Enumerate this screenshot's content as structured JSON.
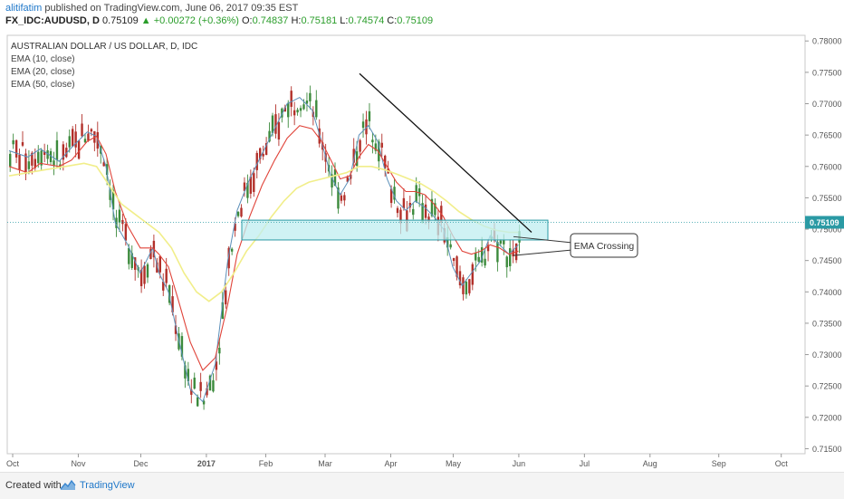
{
  "header": {
    "author": "alitifatim",
    "published_text": "published on TradingView.com, June 06, 2017 09:35 EST",
    "symbol": "FX_IDC:AUDUSD, D",
    "last": "0.75109",
    "change": "▲ +0.00272 (+0.36%)",
    "o_label": "O:",
    "o": "0.74837",
    "h_label": "H:",
    "h": "0.75181",
    "l_label": "L:",
    "l": "0.74574",
    "c_label": "C:",
    "c": "0.75109"
  },
  "legend": {
    "title": "AUSTRALIAN DOLLAR / US DOLLAR, D, IDC",
    "ema10": "EMA (10, close)",
    "ema20": "EMA (20, close)",
    "ema50": "EMA (50, close)"
  },
  "footer": {
    "created_with": "Created with",
    "brand": "TradingView"
  },
  "colors": {
    "up": "#3c8a3c",
    "down": "#b2302a",
    "ema10": "#5b8fb9",
    "ema20": "#e0443a",
    "ema50": "#f1ee8a",
    "zone_fill": "#bfeef0",
    "zone_stroke": "#2a9aa4",
    "last_price": "#2a9aa4"
  },
  "chart_data": {
    "type": "candlestick",
    "ylim": [
      0.7142,
      0.7809
    ],
    "y_ticks": [
      "0.78000",
      "0.77500",
      "0.77000",
      "0.76500",
      "0.76000",
      "0.75500",
      "0.75000",
      "0.74500",
      "0.74000",
      "0.73500",
      "0.73000",
      "0.72500",
      "0.72000",
      "0.71500"
    ],
    "x_ticks": [
      "Oct",
      "Nov",
      "Dec",
      "2017",
      "Feb",
      "Mar",
      "Apr",
      "May",
      "Jun",
      "Jul",
      "Aug",
      "Sep",
      "Oct"
    ],
    "last_price_label": "0.75109",
    "series": [
      {
        "name": "EMA (10, close)",
        "points": [
          [
            0,
            0.7625
          ],
          [
            6,
            0.7615
          ],
          [
            10,
            0.7628
          ],
          [
            16,
            0.7608
          ],
          [
            20,
            0.763
          ],
          [
            25,
            0.7655
          ],
          [
            28,
            0.7648
          ],
          [
            31,
            0.76
          ],
          [
            34,
            0.751
          ],
          [
            38,
            0.7475
          ],
          [
            42,
            0.743
          ],
          [
            46,
            0.747
          ],
          [
            48,
            0.743
          ],
          [
            51,
            0.74
          ],
          [
            54,
            0.733
          ],
          [
            58,
            0.7245
          ],
          [
            62,
            0.7225
          ],
          [
            66,
            0.7285
          ],
          [
            70,
            0.745
          ],
          [
            73,
            0.753
          ],
          [
            77,
            0.758
          ],
          [
            81,
            0.762
          ],
          [
            85,
            0.766
          ],
          [
            89,
            0.77
          ],
          [
            93,
            0.771
          ],
          [
            97,
            0.769
          ],
          [
            100,
            0.764
          ],
          [
            103,
            0.7585
          ],
          [
            106,
            0.7555
          ],
          [
            109,
            0.758
          ],
          [
            112,
            0.765
          ],
          [
            115,
            0.7665
          ],
          [
            118,
            0.764
          ],
          [
            121,
            0.758
          ],
          [
            124,
            0.7545
          ],
          [
            127,
            0.753
          ],
          [
            130,
            0.7545
          ],
          [
            133,
            0.7535
          ],
          [
            136,
            0.752
          ],
          [
            139,
            0.75
          ],
          [
            142,
            0.744
          ],
          [
            145,
            0.741
          ],
          [
            148,
            0.743
          ],
          [
            151,
            0.745
          ],
          [
            154,
            0.749
          ],
          [
            157,
            0.7475
          ],
          [
            160,
            0.746
          ],
          [
            163,
            0.7475
          ]
        ]
      },
      {
        "name": "EMA (20, close)",
        "points": [
          [
            0,
            0.76
          ],
          [
            6,
            0.759
          ],
          [
            10,
            0.7605
          ],
          [
            16,
            0.76
          ],
          [
            20,
            0.761
          ],
          [
            25,
            0.764
          ],
          [
            28,
            0.7648
          ],
          [
            31,
            0.762
          ],
          [
            34,
            0.756
          ],
          [
            38,
            0.7505
          ],
          [
            42,
            0.747
          ],
          [
            46,
            0.747
          ],
          [
            48,
            0.746
          ],
          [
            51,
            0.744
          ],
          [
            54,
            0.739
          ],
          [
            58,
            0.732
          ],
          [
            62,
            0.7275
          ],
          [
            66,
            0.7295
          ],
          [
            70,
            0.738
          ],
          [
            73,
            0.746
          ],
          [
            77,
            0.752
          ],
          [
            81,
            0.757
          ],
          [
            85,
            0.761
          ],
          [
            89,
            0.7645
          ],
          [
            93,
            0.7665
          ],
          [
            97,
            0.766
          ],
          [
            100,
            0.764
          ],
          [
            103,
            0.761
          ],
          [
            106,
            0.758
          ],
          [
            109,
            0.7585
          ],
          [
            112,
            0.7615
          ],
          [
            115,
            0.7635
          ],
          [
            118,
            0.7625
          ],
          [
            121,
            0.76
          ],
          [
            124,
            0.7575
          ],
          [
            127,
            0.756
          ],
          [
            130,
            0.756
          ],
          [
            133,
            0.7555
          ],
          [
            136,
            0.754
          ],
          [
            139,
            0.752
          ],
          [
            142,
            0.749
          ],
          [
            145,
            0.7465
          ],
          [
            148,
            0.746
          ],
          [
            151,
            0.7465
          ],
          [
            154,
            0.7475
          ],
          [
            157,
            0.747
          ],
          [
            160,
            0.746
          ],
          [
            163,
            0.7465
          ]
        ]
      },
      {
        "name": "EMA (50, close)",
        "points": [
          [
            0,
            0.7585
          ],
          [
            6,
            0.759
          ],
          [
            12,
            0.7595
          ],
          [
            18,
            0.76
          ],
          [
            24,
            0.7605
          ],
          [
            28,
            0.76
          ],
          [
            32,
            0.757
          ],
          [
            36,
            0.754
          ],
          [
            40,
            0.7525
          ],
          [
            44,
            0.751
          ],
          [
            48,
            0.7495
          ],
          [
            52,
            0.747
          ],
          [
            56,
            0.743
          ],
          [
            60,
            0.74
          ],
          [
            64,
            0.7385
          ],
          [
            68,
            0.74
          ],
          [
            72,
            0.743
          ],
          [
            76,
            0.7465
          ],
          [
            80,
            0.749
          ],
          [
            84,
            0.752
          ],
          [
            88,
            0.7545
          ],
          [
            92,
            0.7565
          ],
          [
            96,
            0.7575
          ],
          [
            100,
            0.758
          ],
          [
            104,
            0.7585
          ],
          [
            108,
            0.759
          ],
          [
            112,
            0.76
          ],
          [
            116,
            0.76
          ],
          [
            120,
            0.7595
          ],
          [
            124,
            0.7588
          ],
          [
            128,
            0.758
          ],
          [
            132,
            0.7572
          ],
          [
            136,
            0.756
          ],
          [
            140,
            0.7545
          ],
          [
            144,
            0.7528
          ],
          [
            148,
            0.7515
          ],
          [
            152,
            0.7505
          ],
          [
            156,
            0.7498
          ],
          [
            160,
            0.7495
          ],
          [
            163,
            0.7495
          ]
        ]
      }
    ],
    "zone": {
      "x0": 0.749,
      "y_low": 0.749,
      "y_high": 0.751
    },
    "annotation": "EMA Crossing"
  }
}
